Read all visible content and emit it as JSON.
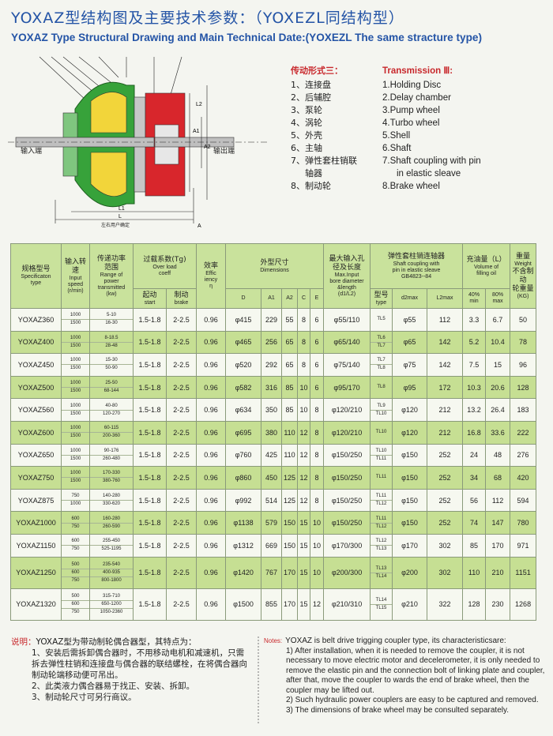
{
  "header": {
    "title_cn": "YOXAZ型结构图及主要技术参数：（YOXEZL同结构型）",
    "title_en": "YOXAZ Type Structural Drawing and Main Technical Date:(YOXEZL The same stracture type)"
  },
  "drawing": {
    "input_label": "输入端",
    "output_label": "输出端",
    "bottom_note": "左右用户确定",
    "dims": [
      "L",
      "L1",
      "L2",
      "A",
      "A1",
      "A2"
    ]
  },
  "transmission_cn": {
    "title": "传动形式三：",
    "items": [
      "1、连接盘",
      "2、后辅腔",
      "3、泵轮",
      "4、涡轮",
      "5、外壳",
      "6、主轴",
      "7、弹性套柱销联轴器",
      "8、制动轮"
    ]
  },
  "transmission_en": {
    "title": "Transmission Ⅲ:",
    "items": [
      "1.Holding Disc",
      "2.Delay chamber",
      "3.Pump wheel",
      "4.Turbo wheel",
      "5.Shell",
      "6.Shaft",
      "7.Shaft coupling with pin in elastic sleave",
      "8.Brake wheel"
    ]
  },
  "table": {
    "headers": {
      "model": [
        "规格型号",
        "Specificaton",
        "type"
      ],
      "speed": [
        "输入转速",
        "Input",
        "speed",
        "(r/min)"
      ],
      "power": [
        "传递功率",
        "范围",
        "Range of",
        "power",
        "transmitted",
        "(kw)"
      ],
      "overload": [
        "过载系数(Tg)",
        "Over load",
        "coeff"
      ],
      "start": [
        "起动",
        "start"
      ],
      "brake": [
        "制动",
        "brake"
      ],
      "eff": [
        "效率",
        "Effic",
        "iency",
        "η"
      ],
      "dims": [
        "外型尺寸",
        "Dimensions"
      ],
      "D": [
        "D"
      ],
      "A1": [
        "A1"
      ],
      "A2": [
        "A2"
      ],
      "C": [
        "C"
      ],
      "E": [
        "E"
      ],
      "bore": [
        "最大输入孔",
        "径及长度",
        "Max.Input",
        "bore diameter",
        "&length",
        "(d1/L2)"
      ],
      "coupling": [
        "弹性套柱销连轴器",
        "Shaft coupling with",
        "pin in elastic sleave",
        "GB4823--84"
      ],
      "type": [
        "型号",
        "type"
      ],
      "d2max": [
        "d2max"
      ],
      "L2max": [
        "L2max"
      ],
      "oil": [
        "充油量（L）",
        "Volume of",
        "filling oil"
      ],
      "oil_min": [
        "40%",
        "min"
      ],
      "oil_max": [
        "80%",
        "max"
      ],
      "weight": [
        "重量",
        "Weight",
        "不含制动",
        "轮重量",
        "(KG)"
      ]
    },
    "rows": [
      {
        "model": "YOXAZ360",
        "speed": [
          1000,
          1500
        ],
        "power": [
          "5-10",
          "16-30"
        ],
        "start": "1.5-1.8",
        "brake": "2-2.5",
        "eff": 0.96,
        "D": "φ415",
        "A1": 229,
        "A2": 55,
        "C": 8,
        "E": 6,
        "bore": "φ55/110",
        "type": [
          "TL5"
        ],
        "d2max": "φ55",
        "L2max": 112,
        "oil_min": 3.3,
        "oil_max": 6.7,
        "weight": 50
      },
      {
        "model": "YOXAZ400",
        "speed": [
          1000,
          1500
        ],
        "power": [
          "8-18.5",
          "28-48"
        ],
        "start": "1.5-1.8",
        "brake": "2-2.5",
        "eff": 0.96,
        "D": "φ465",
        "A1": 256,
        "A2": 65,
        "C": 8,
        "E": 6,
        "bore": "φ65/140",
        "type": [
          "TL6",
          "TL7"
        ],
        "d2max": "φ65",
        "L2max": 142,
        "oil_min": 5.2,
        "oil_max": 10.4,
        "weight": 78
      },
      {
        "model": "YOXAZ450",
        "speed": [
          1000,
          1500
        ],
        "power": [
          "15-30",
          "50-90"
        ],
        "start": "1.5-1.8",
        "brake": "2-2.5",
        "eff": 0.96,
        "D": "φ520",
        "A1": 292,
        "A2": 65,
        "C": 8,
        "E": 6,
        "bore": "φ75/140",
        "type": [
          "TL7",
          "TL8"
        ],
        "d2max": "φ75",
        "L2max": 142,
        "oil_min": 7.5,
        "oil_max": 15,
        "weight": 96
      },
      {
        "model": "YOXAZ500",
        "speed": [
          1000,
          1500
        ],
        "power": [
          "25-50",
          "68-144"
        ],
        "start": "1.5-1.8",
        "brake": "2-2.5",
        "eff": 0.96,
        "D": "φ582",
        "A1": 316,
        "A2": 85,
        "C": 10,
        "E": 6,
        "bore": "φ95/170",
        "type": [
          "TL8"
        ],
        "d2max": "φ95",
        "L2max": 172,
        "oil_min": 10.3,
        "oil_max": 20.6,
        "weight": 128
      },
      {
        "model": "YOXAZ560",
        "speed": [
          1000,
          1500
        ],
        "power": [
          "40-80",
          "120-270"
        ],
        "start": "1.5-1.8",
        "brake": "2-2.5",
        "eff": 0.96,
        "D": "φ634",
        "A1": 350,
        "A2": 85,
        "C": 10,
        "E": 8,
        "bore": "φ120/210",
        "type": [
          "TL9",
          "TL10"
        ],
        "d2max": "φ120",
        "L2max": 212,
        "oil_min": 13.2,
        "oil_max": 26.4,
        "weight": 183
      },
      {
        "model": "YOXAZ600",
        "speed": [
          1000,
          1500
        ],
        "power": [
          "60-115",
          "200-360"
        ],
        "start": "1.5-1.8",
        "brake": "2-2.5",
        "eff": 0.96,
        "D": "φ695",
        "A1": 380,
        "A2": 110,
        "C": 12,
        "E": 8,
        "bore": "φ120/210",
        "type": [
          "TL10"
        ],
        "d2max": "φ120",
        "L2max": 212,
        "oil_min": 16.8,
        "oil_max": 33.6,
        "weight": 222
      },
      {
        "model": "YOXAZ650",
        "speed": [
          1000,
          1500
        ],
        "power": [
          "90-176",
          "260-480"
        ],
        "start": "1.5-1.8",
        "brake": "2-2.5",
        "eff": 0.96,
        "D": "φ760",
        "A1": 425,
        "A2": 110,
        "C": 12,
        "E": 8,
        "bore": "φ150/250",
        "type": [
          "TL10",
          "TL11"
        ],
        "d2max": "φ150",
        "L2max": 252,
        "oil_min": 24,
        "oil_max": 48,
        "weight": 276
      },
      {
        "model": "YOXAZ750",
        "speed": [
          1000,
          1500
        ],
        "power": [
          "170-330",
          "380-760"
        ],
        "start": "1.5-1.8",
        "brake": "2-2.5",
        "eff": 0.96,
        "D": "φ860",
        "A1": 450,
        "A2": 125,
        "C": 12,
        "E": 8,
        "bore": "φ150/250",
        "type": [
          "TL11"
        ],
        "d2max": "φ150",
        "L2max": 252,
        "oil_min": 34,
        "oil_max": 68,
        "weight": 420
      },
      {
        "model": "YOXAZ875",
        "speed": [
          750,
          1000
        ],
        "power": [
          "140-280",
          "330-620"
        ],
        "start": "1.5-1.8",
        "brake": "2-2.5",
        "eff": 0.96,
        "D": "φ992",
        "A1": 514,
        "A2": 125,
        "C": 12,
        "E": 8,
        "bore": "φ150/250",
        "type": [
          "TL11",
          "TL12"
        ],
        "d2max": "φ150",
        "L2max": 252,
        "oil_min": 56,
        "oil_max": 112,
        "weight": 594
      },
      {
        "model": "YOXAZ1000",
        "speed": [
          600,
          750
        ],
        "power": [
          "160-280",
          "260-590"
        ],
        "start": "1.5-1.8",
        "brake": "2-2.5",
        "eff": 0.96,
        "D": "φ1138",
        "A1": 579,
        "A2": 150,
        "C": 15,
        "E": 10,
        "bore": "φ150/250",
        "type": [
          "TL11",
          "TL12"
        ],
        "d2max": "φ150",
        "L2max": 252,
        "oil_min": 74,
        "oil_max": 147,
        "weight": 780
      },
      {
        "model": "YOXAZ1150",
        "speed": [
          600,
          750
        ],
        "power": [
          "255-450",
          "525-1195"
        ],
        "start": "1.5-1.8",
        "brake": "2-2.5",
        "eff": 0.96,
        "D": "φ1312",
        "A1": 669,
        "A2": 150,
        "C": 15,
        "E": 10,
        "bore": "φ170/300",
        "type": [
          "TL12",
          "TL13"
        ],
        "d2max": "φ170",
        "L2max": 302,
        "oil_min": 85,
        "oil_max": 170,
        "weight": 971
      },
      {
        "model": "YOXAZ1250",
        "speed": [
          500,
          600,
          750
        ],
        "power": [
          "235-540",
          "400-935",
          "800-1800"
        ],
        "start": "1.5-1.8",
        "brake": "2-2.5",
        "eff": 0.96,
        "D": "φ1420",
        "A1": 767,
        "A2": 170,
        "C": 15,
        "E": 10,
        "bore": "φ200/300",
        "type": [
          "TL13",
          "TL14"
        ],
        "d2max": "φ200",
        "L2max": 302,
        "oil_min": 110,
        "oil_max": 210,
        "weight": 1151
      },
      {
        "model": "YOXAZ1320",
        "speed": [
          500,
          600,
          750
        ],
        "power": [
          "315-710",
          "650-1200",
          "1050-2360"
        ],
        "start": "1.5-1.8",
        "brake": "2-2.5",
        "eff": 0.96,
        "D": "φ1500",
        "A1": 855,
        "A2": 170,
        "C": 15,
        "E": 12,
        "bore": "φ210/310",
        "type": [
          "TL14",
          "TL15"
        ],
        "d2max": "φ210",
        "L2max": 322,
        "oil_min": 128,
        "oil_max": 230,
        "weight": 1268
      }
    ]
  },
  "notes_cn": {
    "label": "说明：",
    "text": "YOXAZ型为带动制轮偶合器型，其特点为：",
    "items": [
      "1、安装后需拆卸偶合器时，不用移动电机和减速机，只需拆去弹性柱销和连接盘与偶合器的联结螺栓，在将偶合器向制动轮端移动便可吊出。",
      "2、此类液力偶合器易于找正、安装、拆卸。",
      "3、制动轮尺寸可另行商议。"
    ]
  },
  "notes_en": {
    "label": "Notes:",
    "text": "YOXAZ is belt drive trigging coupler type, its characteristicsare:",
    "items": [
      "1) After installation, when it is needed to remove the coupler, it is not necessary to move electric motor and decelerometer, it is only needed to remove the elastic pin and the connection bolt of linking plate and coupler, after that, move the coupler to wards the end of brake wheel, then the coupler may be lifted out.",
      "2) Such hydraulic power couplers are easy to be captured and removed.",
      "3) The dimensions of brake wheel may be consulted separately."
    ]
  }
}
